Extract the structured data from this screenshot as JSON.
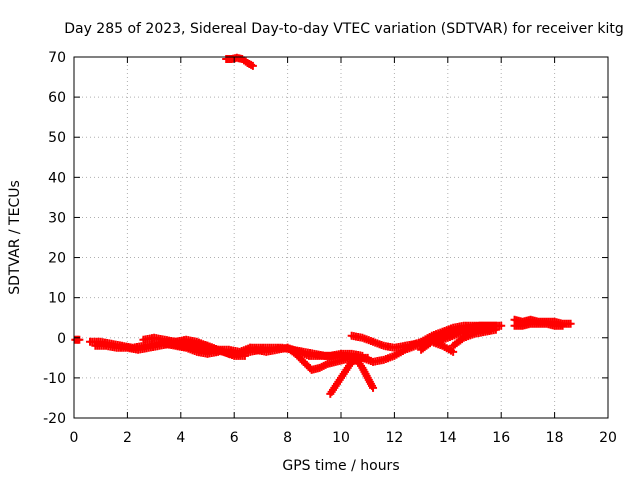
{
  "chart_data": {
    "type": "scatter",
    "title": "Day 285 of 2023, Sidereal Day-to-day VTEC variation (SDTVAR) for receiver kitg",
    "xlabel": "GPS time / hours",
    "ylabel": "SDTVAR / TECUs",
    "xlim": [
      0,
      20
    ],
    "ylim": [
      -20,
      70
    ],
    "x_ticks": [
      0,
      2,
      4,
      6,
      8,
      10,
      12,
      14,
      16,
      18,
      20
    ],
    "y_ticks": [
      -20,
      -10,
      0,
      10,
      20,
      30,
      40,
      50,
      60,
      70
    ],
    "x_tick_labels": [
      "0",
      "2",
      "4",
      "6",
      "8",
      "10",
      "12",
      "14",
      "16",
      "18",
      "20"
    ],
    "y_tick_labels": [
      "-20",
      "-10",
      "0",
      "10",
      "20",
      "30",
      "40",
      "50",
      "60",
      "70"
    ],
    "grid": true,
    "marker": "plus",
    "series": [
      {
        "name": "pt0",
        "color": "#ff0000",
        "x": [
          0.05,
          0.1,
          0.15,
          0.2
        ],
        "y": [
          -0.5,
          -0.5,
          -0.5,
          -0.5
        ]
      },
      {
        "name": "arc1",
        "color": "#ff0000",
        "x": [
          0.6,
          1.0,
          1.4,
          1.8,
          2.2,
          2.6,
          3.0,
          3.4,
          3.8,
          4.2,
          4.6,
          5.0,
          5.4,
          5.8,
          6.2,
          6.6,
          7.0
        ],
        "y": [
          -1.0,
          -1.0,
          -1.5,
          -2.0,
          -2.5,
          -2.0,
          -1.5,
          -1.0,
          -1.0,
          -1.0,
          -1.5,
          -2.0,
          -3.0,
          -4.0,
          -4.0,
          -3.5,
          -3.0
        ]
      },
      {
        "name": "arc2",
        "color": "#ff0000",
        "x": [
          0.8,
          1.2,
          1.6,
          2.0,
          2.4,
          2.8,
          3.2,
          3.6,
          4.0,
          4.4,
          4.8,
          5.2,
          5.6,
          6.0,
          6.4
        ],
        "y": [
          -2.0,
          -2.0,
          -2.5,
          -2.5,
          -3.0,
          -2.5,
          -2.0,
          -1.5,
          -2.0,
          -2.5,
          -3.0,
          -3.0,
          -3.5,
          -4.5,
          -4.5
        ]
      },
      {
        "name": "arc3",
        "color": "#ff0000",
        "x": [
          2.6,
          3.0,
          3.4,
          3.8,
          4.2,
          4.6,
          5.0,
          5.4,
          5.8,
          6.2,
          6.6
        ],
        "y": [
          -0.5,
          0.0,
          -0.5,
          -1.0,
          -0.5,
          -1.0,
          -2.0,
          -3.0,
          -3.0,
          -3.5,
          -2.5
        ]
      },
      {
        "name": "arc4",
        "color": "#ff0000",
        "x": [
          3.4,
          3.8,
          4.2,
          4.6,
          5.0,
          5.4
        ],
        "y": [
          -1.5,
          -2.0,
          -2.5,
          -3.5,
          -4.0,
          -3.5
        ]
      },
      {
        "name": "high",
        "color": "#ff0000",
        "x": [
          5.7,
          5.9,
          6.1,
          6.3,
          6.5,
          6.7
        ],
        "y": [
          69.5,
          69.5,
          69.8,
          69.5,
          68.5,
          67.8
        ]
      },
      {
        "name": "arc5",
        "color": "#ff0000",
        "x": [
          6.6,
          7.0,
          7.4,
          7.8,
          8.2,
          8.6,
          9.0,
          9.4,
          9.8,
          10.2,
          10.6,
          11.0
        ],
        "y": [
          -2.5,
          -2.5,
          -2.5,
          -2.5,
          -3.0,
          -3.5,
          -4.0,
          -4.5,
          -4.5,
          -4.5,
          -5.0,
          -5.0
        ]
      },
      {
        "name": "arc6",
        "color": "#ff0000",
        "x": [
          6.8,
          7.2,
          7.6,
          8.0,
          8.4,
          8.8,
          9.2,
          9.6,
          10.0,
          10.4,
          10.8
        ],
        "y": [
          -3.0,
          -3.5,
          -3.0,
          -2.5,
          -3.5,
          -4.5,
          -4.5,
          -4.5,
          -4.0,
          -4.0,
          -4.5
        ]
      },
      {
        "name": "arc7",
        "color": "#ff0000",
        "x": [
          8.0,
          8.3,
          8.6,
          8.9,
          9.2,
          9.5,
          9.8,
          10.1,
          10.4
        ],
        "y": [
          -2.5,
          -4.0,
          -6.0,
          -8.0,
          -7.5,
          -6.5,
          -6.0,
          -5.5,
          -5.0
        ]
      },
      {
        "name": "arc8",
        "color": "#ff0000",
        "x": [
          9.6,
          9.8,
          10.0,
          10.2,
          10.4,
          10.6,
          10.8,
          11.0,
          11.2
        ],
        "y": [
          -14.0,
          -12.0,
          -10.0,
          -8.0,
          -6.0,
          -5.5,
          -7.5,
          -10.0,
          -12.5
        ]
      },
      {
        "name": "arc9",
        "color": "#ff0000",
        "x": [
          10.8,
          11.2,
          11.6,
          12.0,
          12.4,
          12.8,
          13.2,
          13.6,
          14.0,
          14.4,
          14.8,
          15.2,
          15.6,
          16.0
        ],
        "y": [
          -5.0,
          -6.0,
          -5.5,
          -4.5,
          -3.0,
          -2.0,
          -1.0,
          0.0,
          1.0,
          2.0,
          2.5,
          3.0,
          3.0,
          3.0
        ]
      },
      {
        "name": "arc10",
        "color": "#ff0000",
        "x": [
          10.4,
          10.8,
          11.2,
          11.6,
          12.0,
          12.4,
          12.8
        ],
        "y": [
          0.5,
          0.0,
          -1.0,
          -2.0,
          -2.5,
          -2.0,
          -1.5
        ]
      },
      {
        "name": "arc11",
        "color": "#ff0000",
        "x": [
          12.6,
          13.0,
          13.4,
          13.8,
          14.2,
          14.6,
          15.0,
          15.4,
          15.8
        ],
        "y": [
          -2.0,
          -1.0,
          0.5,
          1.5,
          2.5,
          3.0,
          3.0,
          3.0,
          3.0
        ]
      },
      {
        "name": "arc12",
        "color": "#ff0000",
        "x": [
          13.0,
          13.4,
          13.8,
          14.2
        ],
        "y": [
          -3.0,
          -1.0,
          -2.0,
          -3.5
        ]
      },
      {
        "name": "arc13",
        "color": "#ff0000",
        "x": [
          13.6,
          14.0,
          14.4,
          14.8,
          15.2,
          15.6
        ],
        "y": [
          -1.0,
          0.0,
          1.0,
          2.0,
          2.0,
          2.0
        ]
      },
      {
        "name": "arc14",
        "color": "#ff0000",
        "x": [
          14.2,
          14.6,
          15.0,
          15.4,
          15.8
        ],
        "y": [
          -2.0,
          0.0,
          1.0,
          1.5,
          2.0
        ]
      },
      {
        "name": "arc15",
        "color": "#ff0000",
        "x": [
          16.5,
          16.8,
          17.1,
          17.4,
          17.7,
          18.0,
          18.3,
          18.6
        ],
        "y": [
          4.5,
          4.0,
          4.5,
          4.0,
          4.0,
          4.0,
          3.5,
          3.5
        ]
      },
      {
        "name": "arc16",
        "color": "#ff0000",
        "x": [
          16.5,
          16.8,
          17.1,
          17.4,
          17.7,
          18.0,
          18.3
        ],
        "y": [
          3.0,
          3.0,
          3.5,
          3.5,
          3.5,
          3.0,
          3.0
        ]
      }
    ]
  }
}
